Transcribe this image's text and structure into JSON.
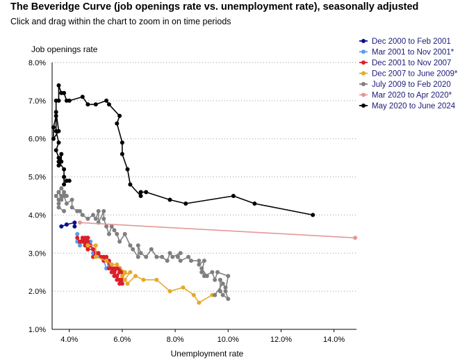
{
  "title": "The Beveridge Curve (job openings rate vs. unemployment rate), seasonally adjusted",
  "subtitle": "Click and drag within the chart to zoom in on time periods",
  "chart_data": {
    "type": "line",
    "xlabel": "Unemployment rate",
    "ylabel": "Job openings rate",
    "xlim": [
      3.35,
      14.85
    ],
    "ylim": [
      1.0,
      8.0
    ],
    "x_ticks": [
      {
        "value": 4,
        "label": "4.0%"
      },
      {
        "value": 6,
        "label": "6.0%"
      },
      {
        "value": 8,
        "label": "8.0%"
      },
      {
        "value": 10,
        "label": "10.0%"
      },
      {
        "value": 12,
        "label": "12.0%"
      },
      {
        "value": 14,
        "label": "14.0%"
      }
    ],
    "y_ticks": [
      {
        "value": 1,
        "label": "1.0%"
      },
      {
        "value": 2,
        "label": "2.0%"
      },
      {
        "value": 3,
        "label": "3.0%"
      },
      {
        "value": 4,
        "label": "4.0%"
      },
      {
        "value": 5,
        "label": "5.0%"
      },
      {
        "value": 6,
        "label": "6.0%"
      },
      {
        "value": 7,
        "label": "7.0%"
      },
      {
        "value": 8,
        "label": "8.0%"
      }
    ],
    "grid": "horizontal dotted",
    "legend_position": "top-right",
    "series": [
      {
        "name": "Dec 2000 to Feb 2001",
        "color": "#0d0d8c",
        "points": [
          [
            3.7,
            3.7
          ],
          [
            3.9,
            3.75
          ],
          [
            4.2,
            3.8
          ],
          [
            4.2,
            3.7
          ]
        ]
      },
      {
        "name": "Mar 2001 to Nov 2001*",
        "color": "#5b9bf0",
        "points": [
          [
            4.3,
            3.5
          ],
          [
            4.3,
            3.3
          ],
          [
            4.4,
            3.2
          ],
          [
            4.6,
            3.4
          ],
          [
            4.8,
            3.3
          ],
          [
            4.9,
            3.0
          ],
          [
            5.3,
            2.8
          ],
          [
            5.4,
            2.6
          ],
          [
            5.5,
            2.7
          ]
        ]
      },
      {
        "name": "Dec 2001 to Nov 2007",
        "color": "#d9202a",
        "points": [
          [
            4.3,
            3.4
          ],
          [
            4.4,
            3.3
          ],
          [
            4.5,
            3.4
          ],
          [
            4.6,
            3.3
          ],
          [
            4.7,
            3.4
          ],
          [
            4.6,
            3.2
          ],
          [
            4.8,
            3.2
          ],
          [
            4.7,
            3.1
          ],
          [
            4.9,
            3.1
          ],
          [
            5.0,
            3.0
          ],
          [
            4.9,
            2.9
          ],
          [
            5.1,
            3.0
          ],
          [
            5.2,
            2.9
          ],
          [
            5.3,
            2.8
          ],
          [
            5.4,
            2.9
          ],
          [
            5.5,
            2.8
          ],
          [
            5.6,
            2.7
          ],
          [
            5.5,
            2.6
          ],
          [
            5.7,
            2.5
          ],
          [
            5.8,
            2.6
          ],
          [
            5.7,
            2.4
          ],
          [
            5.9,
            2.5
          ],
          [
            5.8,
            2.3
          ],
          [
            6.0,
            2.3
          ],
          [
            5.9,
            2.2
          ],
          [
            6.0,
            2.4
          ],
          [
            5.9,
            2.6
          ],
          [
            6.0,
            2.5
          ],
          [
            5.7,
            2.6
          ],
          [
            5.6,
            2.5
          ],
          [
            5.8,
            2.4
          ],
          [
            6.0,
            2.2
          ],
          [
            5.9,
            2.3
          ],
          [
            5.7,
            2.4
          ],
          [
            5.6,
            2.6
          ],
          [
            5.4,
            2.8
          ],
          [
            5.3,
            2.9
          ],
          [
            5.2,
            2.9
          ],
          [
            5.0,
            3.0
          ],
          [
            4.9,
            3.1
          ],
          [
            4.8,
            3.2
          ],
          [
            4.7,
            3.3
          ],
          [
            4.6,
            3.4
          ],
          [
            4.5,
            3.3
          ],
          [
            4.6,
            3.2
          ],
          [
            4.7,
            3.1
          ],
          [
            4.6,
            3.3
          ],
          [
            4.7,
            3.4
          ]
        ]
      },
      {
        "name": "Dec 2007 to June 2009*",
        "color": "#e3aa2b",
        "points": [
          [
            4.7,
            3.2
          ],
          [
            5.0,
            3.2
          ],
          [
            5.0,
            2.9
          ],
          [
            5.4,
            2.8
          ],
          [
            5.6,
            2.7
          ],
          [
            5.8,
            2.7
          ],
          [
            6.1,
            2.5
          ],
          [
            6.0,
            2.4
          ],
          [
            6.3,
            2.5
          ],
          [
            6.1,
            2.3
          ],
          [
            6.2,
            2.2
          ],
          [
            6.5,
            2.4
          ],
          [
            6.8,
            2.3
          ],
          [
            7.3,
            2.3
          ],
          [
            7.8,
            2.0
          ],
          [
            8.3,
            2.1
          ],
          [
            8.7,
            1.9
          ],
          [
            8.9,
            1.7
          ],
          [
            9.4,
            1.9
          ],
          [
            9.5,
            1.9
          ]
        ]
      },
      {
        "name": "July 2009 to Feb 2020",
        "color": "#7f7f7f",
        "points": [
          [
            9.5,
            1.9
          ],
          [
            9.8,
            2.2
          ],
          [
            9.9,
            2.1
          ],
          [
            9.7,
            2.3
          ],
          [
            9.7,
            2.0
          ],
          [
            9.8,
            1.9
          ],
          [
            10.0,
            1.8
          ],
          [
            9.9,
            2.0
          ],
          [
            10.0,
            2.4
          ],
          [
            9.6,
            2.5
          ],
          [
            9.5,
            2.3
          ],
          [
            9.4,
            2.5
          ],
          [
            9.1,
            2.4
          ],
          [
            9.0,
            2.6
          ],
          [
            9.2,
            2.4
          ],
          [
            9.0,
            2.5
          ],
          [
            9.1,
            2.8
          ],
          [
            8.9,
            2.7
          ],
          [
            8.9,
            2.8
          ],
          [
            8.6,
            2.8
          ],
          [
            8.5,
            2.9
          ],
          [
            8.2,
            2.8
          ],
          [
            8.1,
            2.9
          ],
          [
            8.2,
            3.0
          ],
          [
            7.9,
            2.9
          ],
          [
            7.8,
            3.0
          ],
          [
            7.7,
            2.8
          ],
          [
            7.5,
            2.9
          ],
          [
            7.3,
            2.9
          ],
          [
            7.1,
            3.1
          ],
          [
            6.9,
            2.9
          ],
          [
            6.7,
            3.0
          ],
          [
            6.6,
            3.2
          ],
          [
            6.6,
            2.9
          ],
          [
            6.4,
            3.1
          ],
          [
            6.3,
            3.2
          ],
          [
            6.1,
            3.5
          ],
          [
            5.9,
            3.3
          ],
          [
            5.8,
            3.5
          ],
          [
            5.7,
            3.6
          ],
          [
            5.6,
            3.7
          ],
          [
            5.5,
            3.5
          ],
          [
            5.4,
            3.7
          ],
          [
            5.3,
            3.9
          ],
          [
            5.3,
            4.1
          ],
          [
            5.1,
            3.8
          ],
          [
            5.1,
            4.1
          ],
          [
            5.0,
            3.9
          ],
          [
            4.9,
            4.0
          ],
          [
            4.7,
            3.9
          ],
          [
            4.5,
            4.0
          ],
          [
            4.4,
            4.1
          ],
          [
            4.3,
            4.1
          ],
          [
            4.1,
            4.2
          ],
          [
            4.1,
            4.4
          ],
          [
            3.9,
            4.3
          ],
          [
            3.8,
            4.5
          ],
          [
            3.7,
            4.4
          ],
          [
            3.6,
            4.6
          ],
          [
            3.7,
            4.7
          ],
          [
            3.9,
            4.5
          ],
          [
            3.8,
            4.6
          ],
          [
            3.6,
            4.4
          ],
          [
            3.5,
            4.5
          ],
          [
            3.6,
            4.6
          ],
          [
            3.7,
            4.5
          ],
          [
            3.6,
            4.3
          ],
          [
            3.6,
            4.2
          ],
          [
            3.8,
            4.1
          ]
        ]
      },
      {
        "name": "Mar 2020 to Apr 2020*",
        "color": "#e39896",
        "points": [
          [
            4.4,
            3.8
          ],
          [
            14.8,
            3.4
          ]
        ]
      },
      {
        "name": "May 2020 to June 2024",
        "color": "#000000",
        "points": [
          [
            13.2,
            4.0
          ],
          [
            11.0,
            4.3
          ],
          [
            10.2,
            4.5
          ],
          [
            8.4,
            4.3
          ],
          [
            7.8,
            4.4
          ],
          [
            6.9,
            4.6
          ],
          [
            6.7,
            4.6
          ],
          [
            6.7,
            4.5
          ],
          [
            6.3,
            4.8
          ],
          [
            6.2,
            5.2
          ],
          [
            6.0,
            5.6
          ],
          [
            6.0,
            5.9
          ],
          [
            5.8,
            6.4
          ],
          [
            5.9,
            6.6
          ],
          [
            5.5,
            6.9
          ],
          [
            5.4,
            7.0
          ],
          [
            5.0,
            6.9
          ],
          [
            4.7,
            6.9
          ],
          [
            4.5,
            7.1
          ],
          [
            4.0,
            7.0
          ],
          [
            3.9,
            7.0
          ],
          [
            3.8,
            7.2
          ],
          [
            3.7,
            7.2
          ],
          [
            3.6,
            7.4
          ],
          [
            3.6,
            7.0
          ],
          [
            3.5,
            7.0
          ],
          [
            3.5,
            6.7
          ],
          [
            3.6,
            6.2
          ],
          [
            3.4,
            6.0
          ],
          [
            3.4,
            6.3
          ],
          [
            3.5,
            6.6
          ],
          [
            3.5,
            6.2
          ],
          [
            3.6,
            5.9
          ],
          [
            3.5,
            5.7
          ],
          [
            3.6,
            5.5
          ],
          [
            3.6,
            5.3
          ],
          [
            3.7,
            5.6
          ],
          [
            3.7,
            5.4
          ],
          [
            3.6,
            5.4
          ],
          [
            3.8,
            5.2
          ],
          [
            3.8,
            5.0
          ],
          [
            3.8,
            4.8
          ],
          [
            3.9,
            4.9
          ],
          [
            4.0,
            4.9
          ]
        ]
      }
    ]
  }
}
